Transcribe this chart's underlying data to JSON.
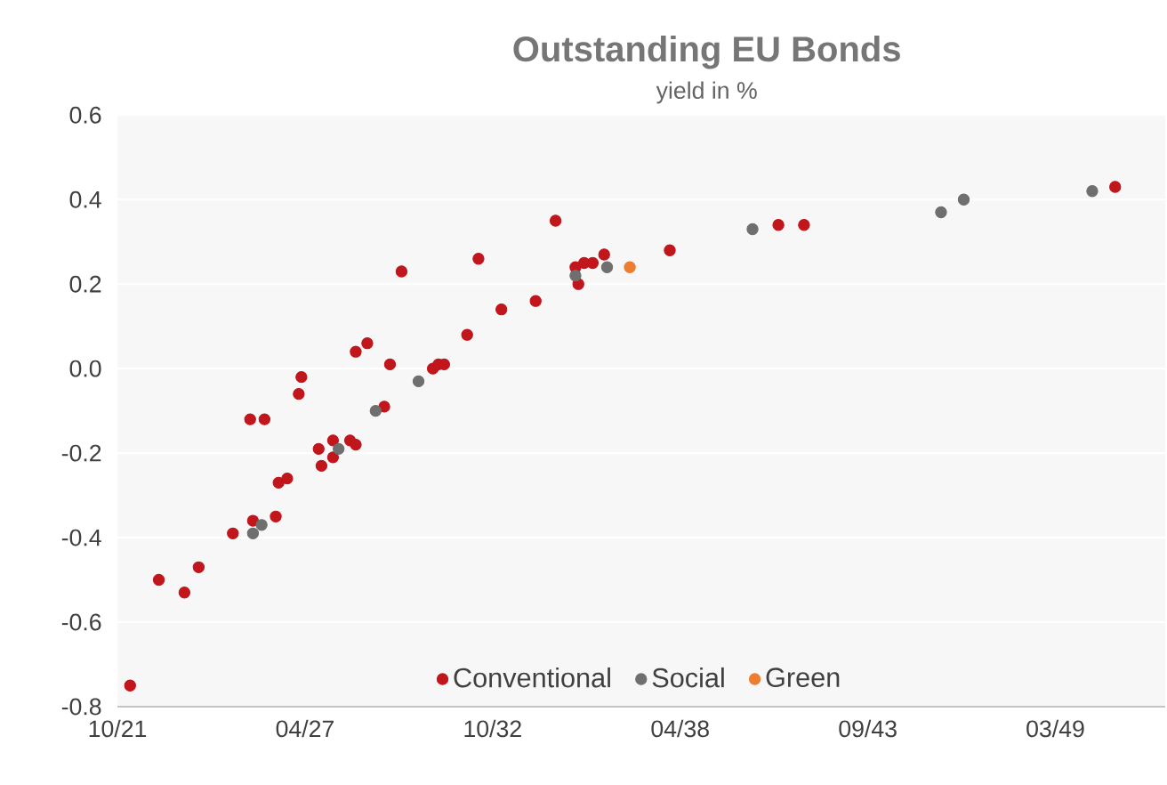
{
  "chart_data": {
    "type": "scatter",
    "title": "Outstanding EU Bonds",
    "subtitle": "yield in %",
    "xlim": [
      "2021-10-31",
      "2052-06-01"
    ],
    "xticks": [
      {
        "value": "2021-10-31",
        "label": "10/21"
      },
      {
        "value": "2027-04-23",
        "label": "04/27"
      },
      {
        "value": "2032-10-13",
        "label": "10/32"
      },
      {
        "value": "2038-04-05",
        "label": "04/38"
      },
      {
        "value": "2043-09-26",
        "label": "09/43"
      },
      {
        "value": "2049-03-18",
        "label": "03/49"
      }
    ],
    "ylim": [
      -0.8,
      0.6
    ],
    "yticks": [
      -0.8,
      -0.6,
      -0.4,
      -0.2,
      {
        "value": 0,
        "label": "0.0"
      },
      0.2,
      0.4,
      0.6
    ],
    "grid": "y",
    "legend": "bottom",
    "marker": "circle",
    "series": [
      {
        "name": "Conventional",
        "color": "#c0161c",
        "x": [
          "2022-03",
          "2023-01",
          "2023-10",
          "2024-03",
          "2025-03",
          "2025-09",
          "2026-02",
          "2025-10",
          "2026-06",
          "2026-07",
          "2026-10",
          "2027-02",
          "2027-03",
          "2027-09",
          "2027-10",
          "2028-02",
          "2028-02",
          "2028-08",
          "2028-10",
          "2028-10",
          "2029-02",
          "2029-08",
          "2029-10",
          "2030-02",
          "2031-01",
          "2031-03",
          "2031-05",
          "2032-01",
          "2032-05",
          "2033-01",
          "2034-01",
          "2034-08",
          "2035-03",
          "2035-04",
          "2035-06",
          "2035-09",
          "2036-01",
          "2037-12",
          "2041-02",
          "2041-11",
          "2050-12"
        ],
        "values": [
          -0.75,
          -0.5,
          -0.53,
          -0.47,
          -0.39,
          -0.12,
          -0.12,
          -0.36,
          -0.35,
          -0.27,
          -0.26,
          -0.06,
          -0.02,
          -0.19,
          -0.23,
          -0.17,
          -0.21,
          -0.17,
          -0.18,
          0.04,
          0.06,
          -0.09,
          0.01,
          0.23,
          0.0,
          0.01,
          0.01,
          0.08,
          0.26,
          0.14,
          0.16,
          0.35,
          0.24,
          0.2,
          0.25,
          0.25,
          0.27,
          0.28,
          0.34,
          0.34,
          0.43
        ]
      },
      {
        "name": "Social",
        "color": "#6f6f6f",
        "x": [
          "2025-10",
          "2026-01",
          "2028-04",
          "2029-05",
          "2030-08",
          "2035-03",
          "2036-02",
          "2040-05",
          "2045-11",
          "2046-07",
          "2050-04"
        ],
        "values": [
          -0.39,
          -0.37,
          -0.19,
          -0.1,
          -0.03,
          0.22,
          0.24,
          0.33,
          0.37,
          0.4,
          0.42
        ]
      },
      {
        "name": "Green",
        "color": "#ed7d31",
        "x": [
          "2036-10"
        ],
        "values": [
          0.24
        ]
      }
    ]
  }
}
